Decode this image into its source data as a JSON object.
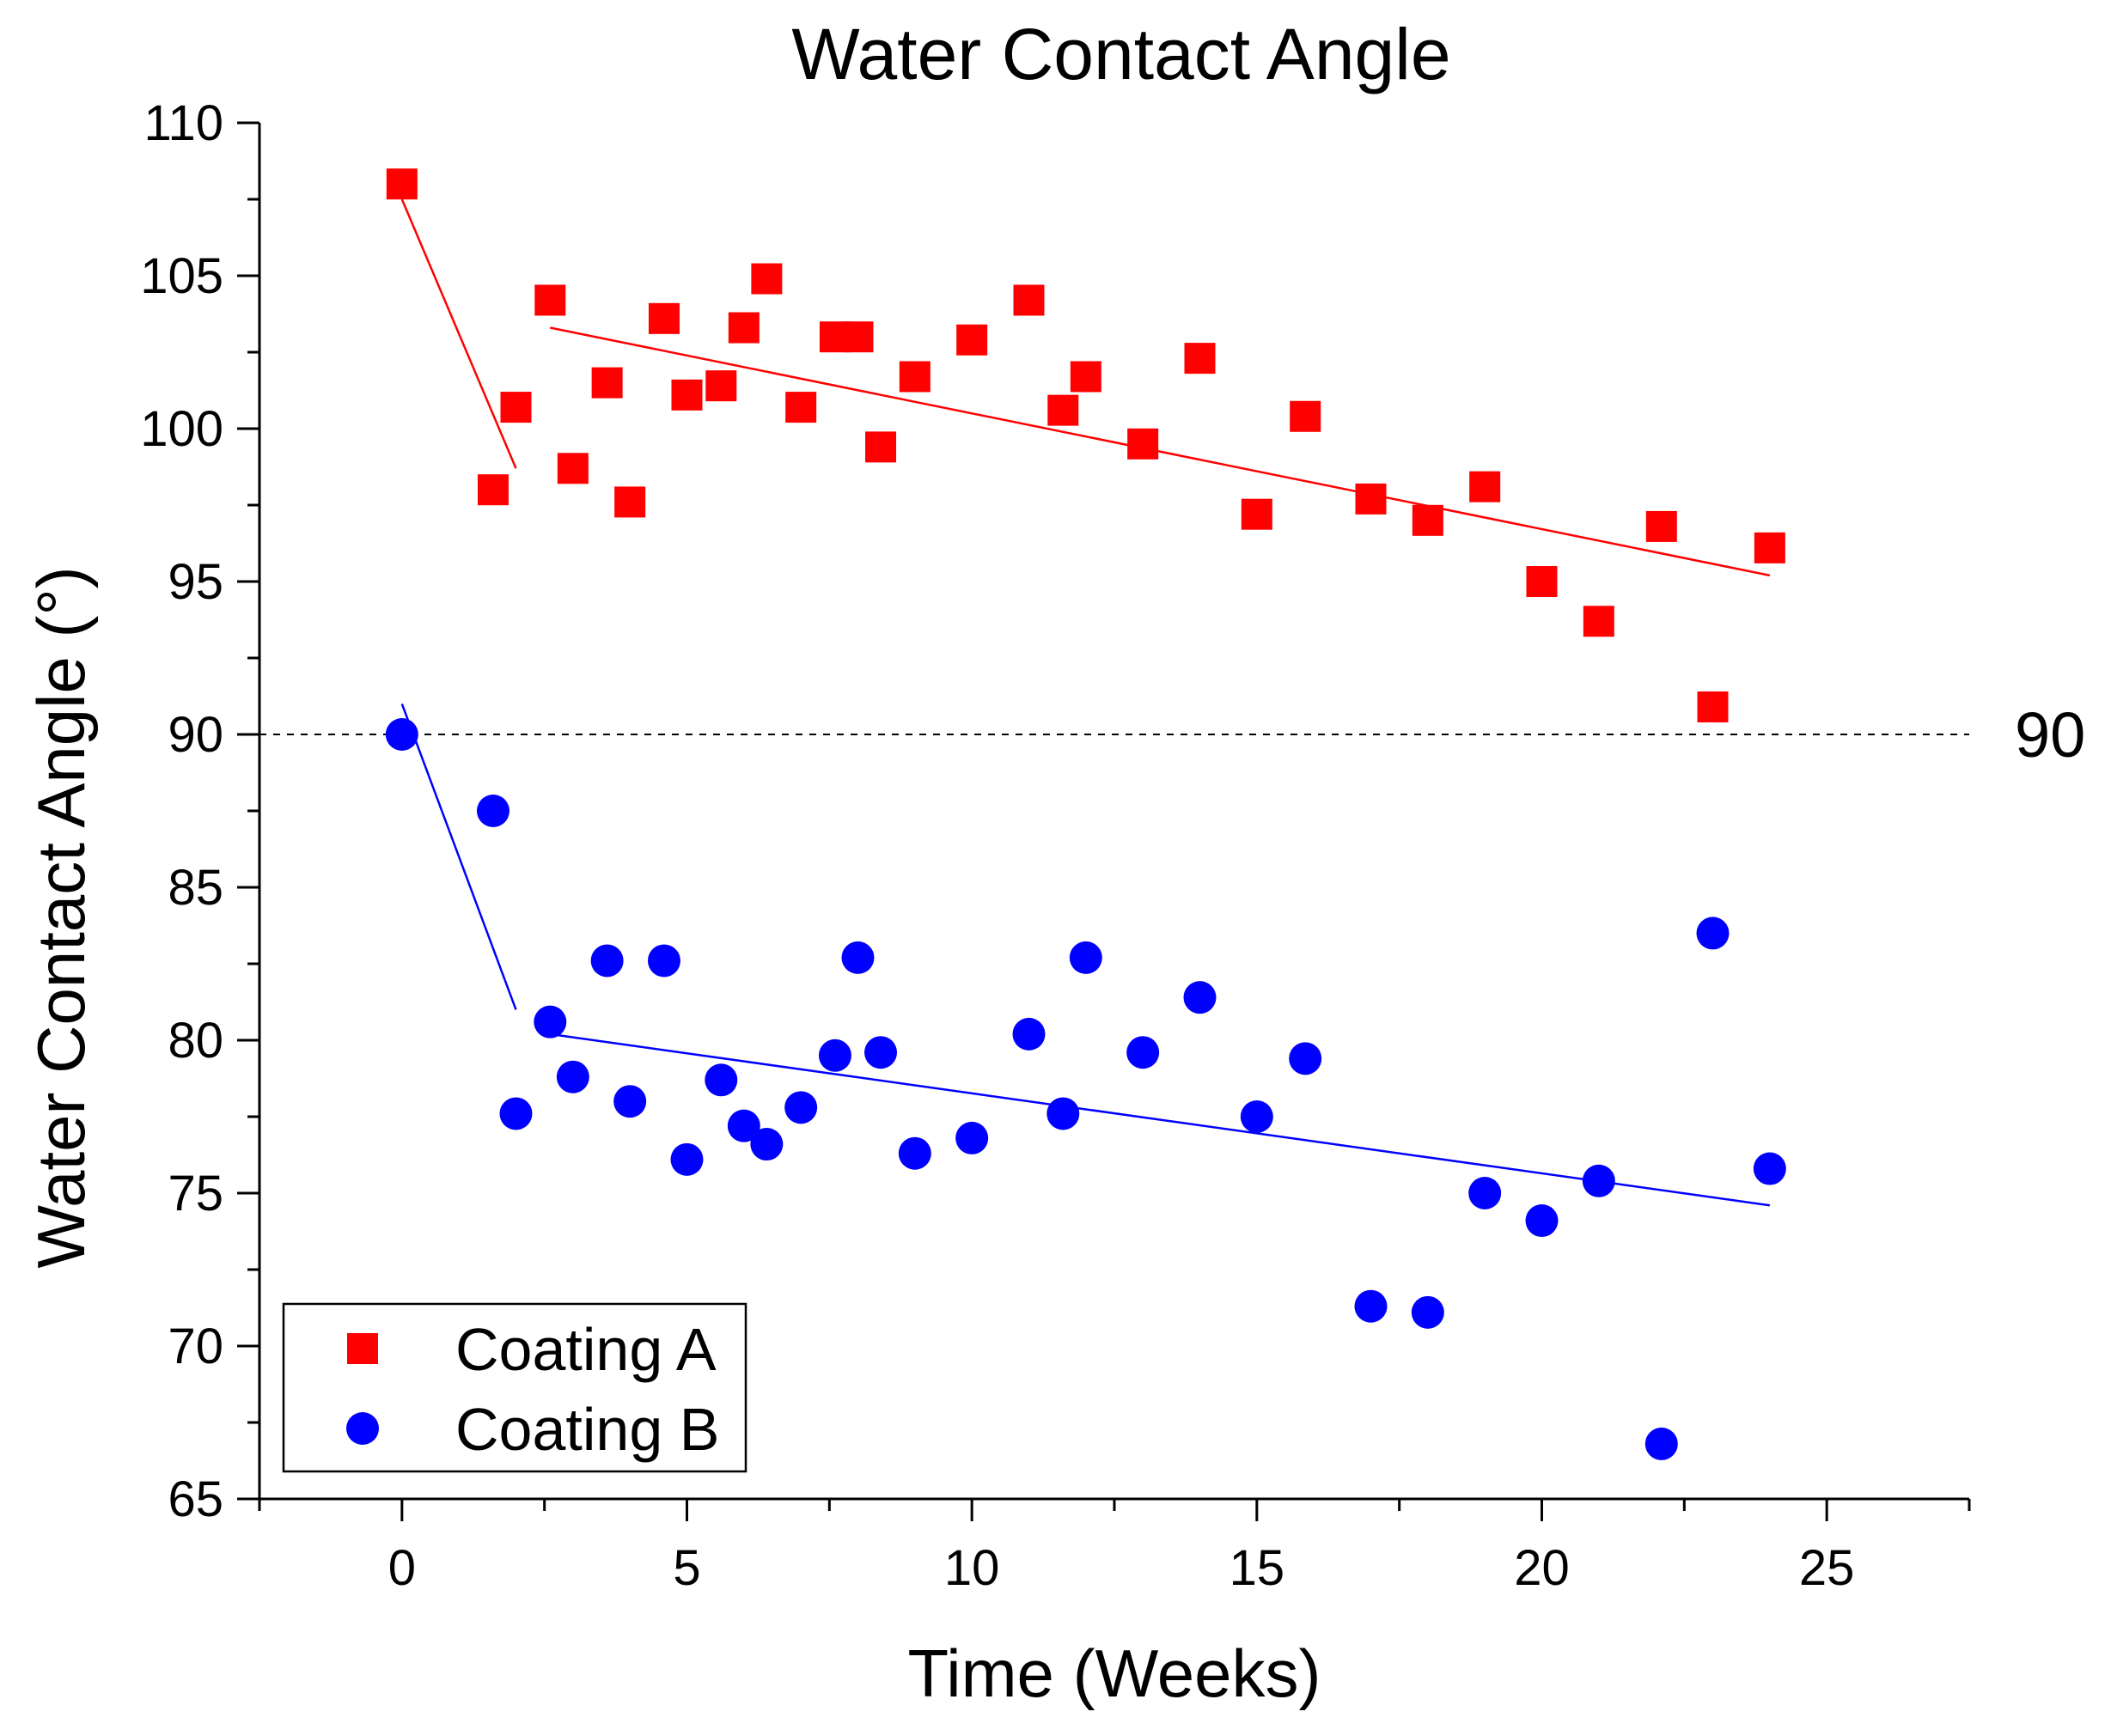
{
  "chart_data": {
    "type": "scatter",
    "title": "Water Contact Angle",
    "xlabel": "Time (Weeks)",
    "ylabel": "Water Contact Angle (°)",
    "xlim": [
      -2.5,
      27.5
    ],
    "ylim": [
      65,
      110
    ],
    "xticks": [
      0,
      5,
      10,
      15,
      20,
      25
    ],
    "yticks": [
      65,
      70,
      75,
      80,
      85,
      90,
      95,
      100,
      105,
      110
    ],
    "grid": false,
    "legend_position": "bottom-left",
    "reference_line": {
      "y": 90,
      "label": "90",
      "style": "dashed"
    },
    "series": [
      {
        "name": "Coating A",
        "marker": "square",
        "color": "#ff0000",
        "points": [
          [
            0,
            108.0
          ],
          [
            1.6,
            98.0
          ],
          [
            2.0,
            100.7
          ],
          [
            2.6,
            104.2
          ],
          [
            3.0,
            98.7
          ],
          [
            3.6,
            101.5
          ],
          [
            4.0,
            97.6
          ],
          [
            4.6,
            103.6
          ],
          [
            5.0,
            101.1
          ],
          [
            5.6,
            101.4
          ],
          [
            6.0,
            103.3
          ],
          [
            6.4,
            104.9
          ],
          [
            7.0,
            100.7
          ],
          [
            7.6,
            103.0
          ],
          [
            8.0,
            103.0
          ],
          [
            8.4,
            99.4
          ],
          [
            9.0,
            101.7
          ],
          [
            10.0,
            102.9
          ],
          [
            11.0,
            104.2
          ],
          [
            11.6,
            100.6
          ],
          [
            12.0,
            101.7
          ],
          [
            13.0,
            99.5
          ],
          [
            14.0,
            102.3
          ],
          [
            15.0,
            97.2
          ],
          [
            15.85,
            100.4
          ],
          [
            17.0,
            97.7
          ],
          [
            18.0,
            97.0
          ],
          [
            19.0,
            98.1
          ],
          [
            20.0,
            95.0
          ],
          [
            21.0,
            93.7
          ],
          [
            22.1,
            96.8
          ],
          [
            23.0,
            90.9
          ],
          [
            24.0,
            96.1
          ]
        ],
        "trend_lines": [
          {
            "x": [
              0,
              2.0
            ],
            "y": [
              107.5,
              98.7
            ]
          },
          {
            "x": [
              2.6,
              24.0
            ],
            "y": [
              103.3,
              95.2
            ]
          }
        ]
      },
      {
        "name": "Coating B",
        "marker": "circle",
        "color": "#0000ff",
        "points": [
          [
            0,
            90.0
          ],
          [
            1.6,
            87.5
          ],
          [
            2.0,
            77.6
          ],
          [
            2.6,
            80.6
          ],
          [
            3.0,
            78.8
          ],
          [
            3.6,
            82.6
          ],
          [
            4.0,
            78.0
          ],
          [
            4.6,
            82.6
          ],
          [
            5.0,
            76.1
          ],
          [
            5.6,
            78.7
          ],
          [
            6.0,
            77.2
          ],
          [
            6.4,
            76.6
          ],
          [
            7.0,
            77.8
          ],
          [
            7.6,
            79.5
          ],
          [
            8.0,
            82.7
          ],
          [
            8.4,
            79.6
          ],
          [
            9.0,
            76.3
          ],
          [
            10.0,
            76.8
          ],
          [
            11.0,
            80.2
          ],
          [
            11.6,
            77.6
          ],
          [
            12.0,
            82.7
          ],
          [
            13.0,
            79.6
          ],
          [
            14.0,
            81.4
          ],
          [
            15.0,
            77.5
          ],
          [
            15.85,
            79.4
          ],
          [
            17.0,
            71.3
          ],
          [
            18.0,
            71.1
          ],
          [
            19.0,
            75.0
          ],
          [
            20.0,
            74.1
          ],
          [
            21.0,
            75.4
          ],
          [
            22.1,
            66.8
          ],
          [
            23.0,
            83.5
          ],
          [
            24.0,
            75.8
          ]
        ],
        "trend_lines": [
          {
            "x": [
              0,
              2.0
            ],
            "y": [
              91.0,
              81.0
            ]
          },
          {
            "x": [
              2.6,
              24.0
            ],
            "y": [
              80.2,
              74.6
            ]
          }
        ]
      }
    ]
  }
}
